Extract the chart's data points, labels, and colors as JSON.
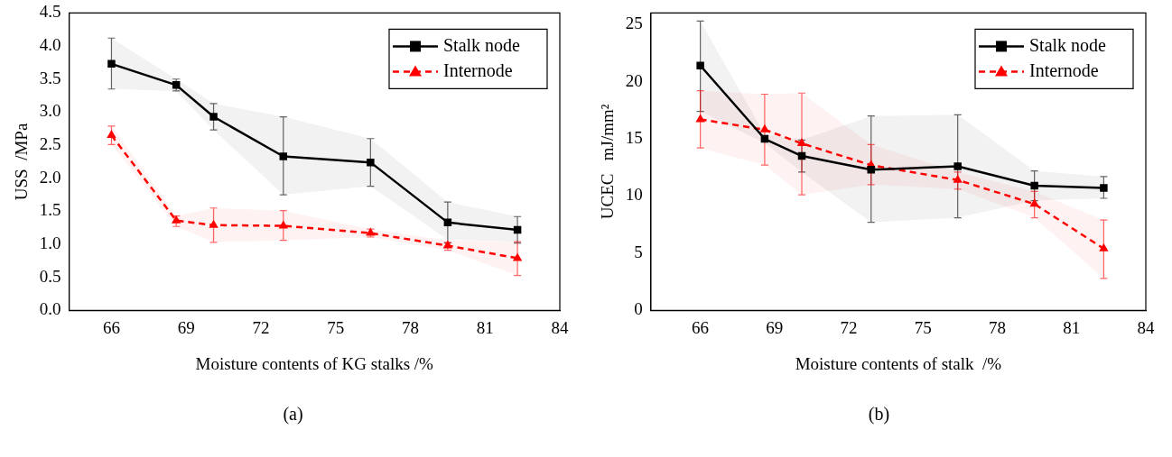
{
  "chart_data": [
    {
      "type": "line",
      "xlabel": "Moisture contents of KG stalks /%",
      "ylabel": "USS  /MPa",
      "xlim": [
        64.3,
        84
      ],
      "ylim": [
        0,
        4.5
      ],
      "xticks": [
        66,
        69,
        72,
        75,
        78,
        81,
        84
      ],
      "yticks": [
        {
          "value": 0,
          "label": "0.0"
        },
        0.5,
        {
          "value": 1,
          "label": "1.0"
        },
        1.5,
        {
          "value": 2,
          "label": "2.0"
        },
        2.5,
        {
          "value": 3,
          "label": "3.0"
        },
        3.5,
        {
          "value": 4,
          "label": "4.0"
        },
        4.5
      ],
      "grid": false,
      "legend": "top right",
      "annotations": [
        "(a)"
      ],
      "x": [
        66,
        68.6,
        70.1,
        72.9,
        76.4,
        79.5,
        82.3
      ],
      "series": [
        {
          "name": "Stalk node",
          "color": "#000000",
          "marker": "square",
          "line_style": "solid",
          "values": [
            3.73,
            3.41,
            2.93,
            2.33,
            2.24,
            1.33,
            1.22
          ],
          "errors": [
            [
              3.35,
              4.12
            ],
            [
              3.32,
              3.5
            ],
            [
              2.73,
              3.13
            ],
            [
              1.75,
              2.93
            ],
            [
              1.88,
              2.6
            ],
            [
              1.02,
              1.64
            ],
            [
              1.02,
              1.42
            ]
          ],
          "lower": [
            3.35,
            3.32,
            2.73,
            1.75,
            1.88,
            1.07,
            1.04
          ],
          "upper": [
            4.12,
            3.5,
            3.13,
            2.93,
            2.6,
            1.64,
            1.42
          ]
        },
        {
          "name": "Internode",
          "color": "#ff0000",
          "marker": "triangle",
          "line_style": "dashed",
          "values": [
            2.65,
            1.36,
            1.29,
            1.28,
            1.17,
            0.98,
            0.79
          ],
          "errors": [
            [
              2.51,
              2.79
            ],
            [
              1.27,
              1.43
            ],
            [
              1.03,
              1.55
            ],
            [
              1.06,
              1.51
            ],
            [
              1.11,
              1.23
            ],
            [
              0.91,
              1.03
            ],
            [
              0.53,
              1.04
            ]
          ],
          "lower": [
            2.51,
            1.27,
            1.03,
            1.06,
            1.11,
            0.91,
            0.53
          ],
          "upper": [
            2.79,
            1.43,
            1.55,
            1.51,
            1.23,
            1.06,
            1.04
          ]
        }
      ]
    },
    {
      "type": "line",
      "xlabel": "Moisture contents of stalk  /%",
      "ylabel": "UCEC   mJ/mm²",
      "xlim": [
        64,
        84
      ],
      "ylim": [
        0,
        26
      ],
      "xticks": [
        66,
        69,
        72,
        75,
        78,
        81,
        84
      ],
      "yticks": [
        0,
        5,
        10,
        15,
        20,
        25
      ],
      "grid": false,
      "legend": "top right",
      "annotations": [
        "(b)"
      ],
      "x": [
        66,
        68.6,
        70.1,
        72.9,
        76.4,
        79.5,
        82.3
      ],
      "series": [
        {
          "name": "Stalk node",
          "color": "#000000",
          "marker": "square",
          "line_style": "solid",
          "values": [
            21.4,
            15.0,
            13.5,
            12.3,
            12.6,
            10.9,
            10.7
          ],
          "errors": [
            [
              17.4,
              25.3
            ],
            null,
            [
              12.1,
              14.9
            ],
            [
              7.7,
              17.0
            ],
            [
              8.1,
              17.1
            ],
            [
              9.6,
              12.2
            ],
            [
              9.8,
              11.7
            ]
          ],
          "lower": [
            17.4,
            14.6,
            12.1,
            7.7,
            8.1,
            9.6,
            9.8
          ],
          "upper": [
            25.3,
            15.4,
            14.9,
            17.0,
            17.1,
            12.2,
            11.7
          ]
        },
        {
          "name": "Internode",
          "color": "#ff0000",
          "marker": "triangle",
          "line_style": "dashed",
          "values": [
            16.7,
            15.8,
            14.6,
            12.7,
            11.4,
            9.3,
            5.4
          ],
          "errors": [
            [
              14.2,
              19.2
            ],
            [
              12.7,
              18.9
            ],
            [
              10.1,
              19.0
            ],
            [
              11.0,
              14.5
            ],
            [
              10.6,
              12.1
            ],
            [
              8.1,
              10.4
            ],
            [
              2.8,
              7.9
            ]
          ],
          "lower": [
            14.2,
            12.7,
            10.1,
            11.0,
            10.6,
            8.1,
            2.8
          ],
          "upper": [
            19.2,
            18.9,
            19.0,
            14.5,
            12.1,
            10.4,
            7.9
          ]
        }
      ]
    }
  ]
}
